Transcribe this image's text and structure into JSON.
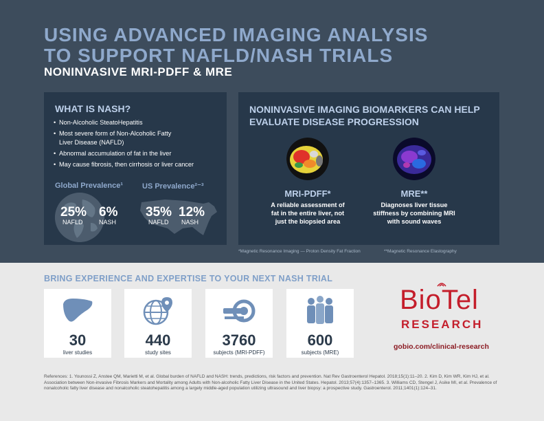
{
  "header": {
    "title_line1": "USING ADVANCED IMAGING ANALYSIS",
    "title_line2": "TO SUPPORT NAFLD/NASH TRIALS",
    "subtitle": "NONINVASIVE MRI-PDFF & MRE"
  },
  "what_is_nash": {
    "title": "WHAT IS NASH?",
    "bullets": [
      "Non-Alcoholic SteatoHepatitis",
      "Most severe form of Non-Alcoholic Fatty Liver Disease (NAFLD)",
      "Abnormal accumulation of fat in the liver",
      "May cause fibrosis, then cirrhosis or liver cancer"
    ],
    "global": {
      "label": "Global Prevalence¹",
      "nafld_value": "25%",
      "nafld_label": "NAFLD",
      "nash_value": "6%",
      "nash_label": "NASH"
    },
    "us": {
      "label": "US Prevalence²⁻³",
      "nafld_value": "35%",
      "nafld_label": "NAFLD",
      "nash_value": "12%",
      "nash_label": "NASH"
    }
  },
  "biomarkers": {
    "title": "NONINVASIVE IMAGING BIOMARKERS CAN HELP EVALUATE DISEASE PROGRESSION",
    "mri": {
      "title": "MRI-PDFF*",
      "desc": "A reliable assessment of fat in the entire liver, not just the biopsied area"
    },
    "mre": {
      "title": "MRE**",
      "desc": "Diagnoses liver tissue stiffness by combining MRI with sound waves"
    },
    "footnote1": "*Magnetic Resonance Imaging — Proton Density Fat Fraction",
    "footnote2": "**Magnetic Resonance Elastography"
  },
  "experience": {
    "title": "BRING EXPERIENCE AND EXPERTISE TO YOUR NEXT NASH TRIAL",
    "cards": [
      {
        "value": "30",
        "label": "liver studies",
        "icon": "liver-icon"
      },
      {
        "value": "440",
        "label": "study sites",
        "icon": "globe-pin-icon"
      },
      {
        "value": "3760",
        "label": "subjects (MRI-PDFF)",
        "icon": "mri-scanner-icon"
      },
      {
        "value": "600",
        "label": "subjects (MRE)",
        "icon": "people-icon"
      }
    ]
  },
  "logo": {
    "brand": "BioTel",
    "division": "RESEARCH",
    "url": "gobio.com/clinical-research"
  },
  "references": "References: 1. Younossi Z, Anstee QM, Marietti M, et al. Global burden of NAFLD and NASH: trends, predictions, risk factors and prevention. Nat Rev Gastroenterol Hepatol. 2018;15(1):11–20. 2. Kim D, Kim WR, Kim HJ, et al. Association between Non-invasive Fibrosis Markers and Mortality among Adults with Non-alcoholic Fatty Liver Disease in the United States. Hepatol. 2013;57(4):1357–1365. 3. Williams CD, Stengel J, Asike MI, et al. Prevalence of nonalcoholic fatty liver disease and nonalcoholic steatohepatitis among a largely middle-aged population utilizing ultrasound and liver biopsy: a prospective study. Gastroenterol. 2011;1401(1):124–31.",
  "colors": {
    "bg_dark": "#3d4c5c",
    "panel": "#27384a",
    "accent_blue": "#8fa9cc",
    "brand_red": "#c41e2b",
    "bottom_bg": "#e9e9e9"
  }
}
